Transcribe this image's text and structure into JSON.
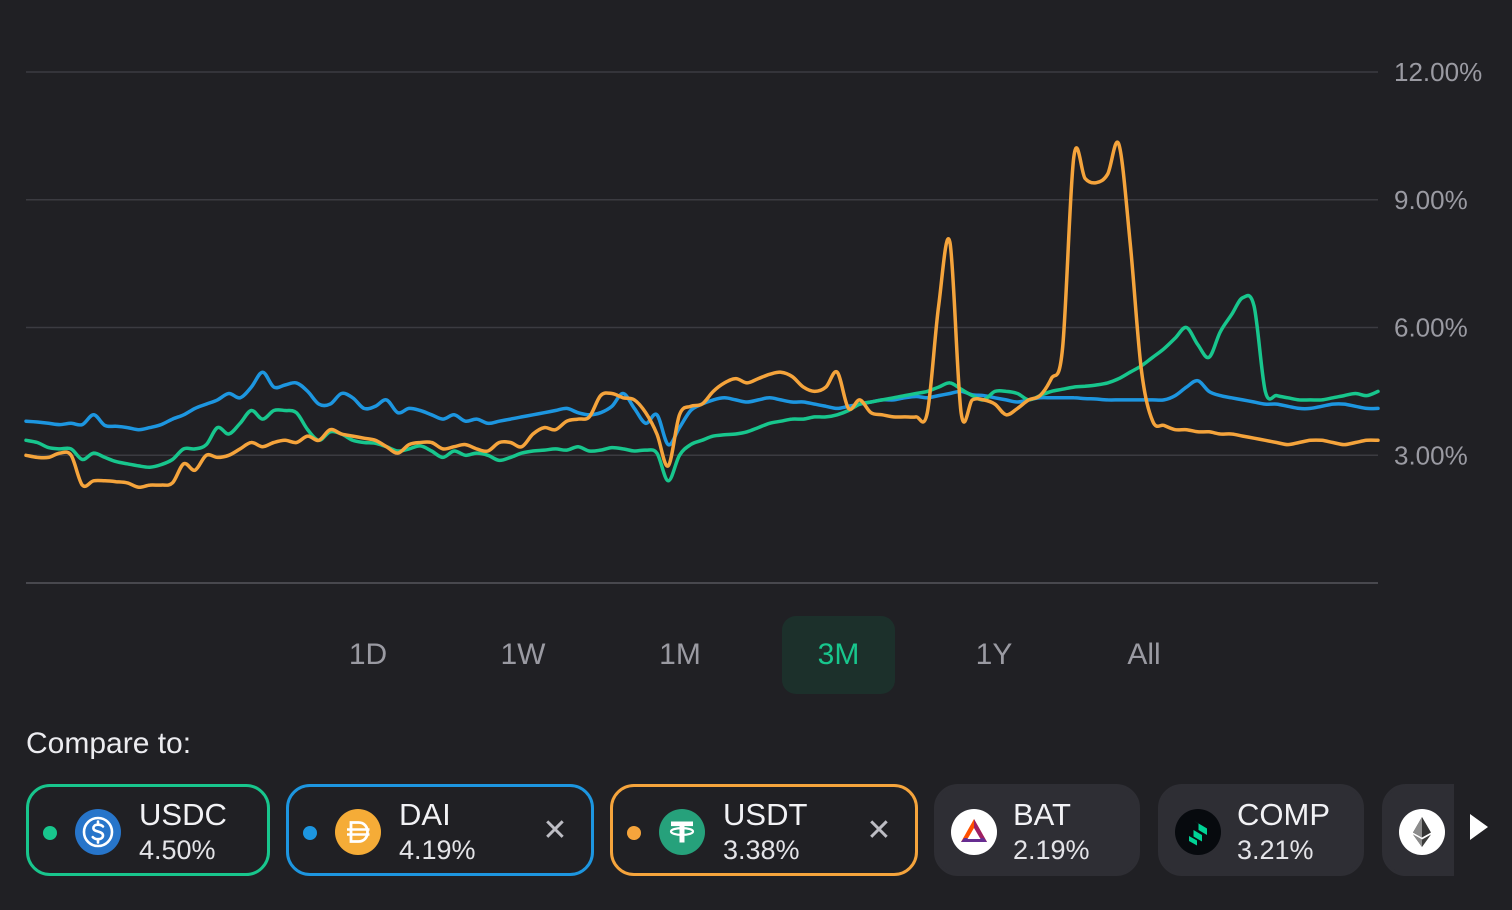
{
  "chart_data": {
    "type": "line",
    "ylim": [
      0,
      12
    ],
    "y_ticks": [
      3,
      6,
      9,
      12
    ],
    "y_tick_labels": [
      "3.00%",
      "6.00%",
      "9.00%",
      "12.00%"
    ],
    "grid": true,
    "x_points": 121,
    "series": [
      {
        "name": "USDC",
        "color": "#18c68d",
        "values": [
          3.35,
          3.3,
          3.18,
          3.15,
          3.15,
          2.9,
          3.05,
          2.95,
          2.85,
          2.8,
          2.75,
          2.72,
          2.78,
          2.9,
          3.15,
          3.15,
          3.25,
          3.65,
          3.5,
          3.75,
          4.05,
          3.85,
          4.05,
          4.05,
          4.0,
          3.6,
          3.35,
          3.55,
          3.5,
          3.35,
          3.3,
          3.28,
          3.2,
          3.1,
          3.15,
          3.22,
          3.1,
          2.95,
          3.1,
          3.0,
          3.05,
          3.0,
          2.88,
          2.95,
          3.05,
          3.1,
          3.12,
          3.15,
          3.12,
          3.2,
          3.1,
          3.12,
          3.18,
          3.15,
          3.1,
          3.12,
          3.05,
          2.4,
          3.0,
          3.25,
          3.35,
          3.45,
          3.48,
          3.5,
          3.55,
          3.65,
          3.75,
          3.8,
          3.85,
          3.85,
          3.9,
          3.9,
          3.95,
          4.05,
          4.2,
          4.25,
          4.3,
          4.35,
          4.4,
          4.45,
          4.5,
          4.6,
          4.7,
          4.55,
          4.4,
          4.3,
          4.5,
          4.5,
          4.45,
          4.3,
          4.4,
          4.5,
          4.55,
          4.6,
          4.62,
          4.65,
          4.7,
          4.8,
          4.95,
          5.1,
          5.3,
          5.5,
          5.75,
          6.0,
          5.6,
          5.3,
          5.9,
          6.3,
          6.7,
          6.5,
          4.5,
          4.4,
          4.35,
          4.3,
          4.3,
          4.3,
          4.35,
          4.4,
          4.45,
          4.4,
          4.5
        ]
      },
      {
        "name": "DAI",
        "color": "#1d96e0",
        "values": [
          3.8,
          3.78,
          3.75,
          3.72,
          3.75,
          3.72,
          3.95,
          3.7,
          3.68,
          3.65,
          3.6,
          3.65,
          3.72,
          3.85,
          3.95,
          4.1,
          4.2,
          4.3,
          4.45,
          4.35,
          4.6,
          4.95,
          4.6,
          4.65,
          4.7,
          4.5,
          4.2,
          4.2,
          4.45,
          4.35,
          4.1,
          4.15,
          4.3,
          4.0,
          4.1,
          4.05,
          3.95,
          3.85,
          3.95,
          3.8,
          3.85,
          3.75,
          3.8,
          3.85,
          3.9,
          3.95,
          4.0,
          4.05,
          4.1,
          4.0,
          3.95,
          4.0,
          4.15,
          4.45,
          4.1,
          3.75,
          3.95,
          3.25,
          3.65,
          4.05,
          4.2,
          4.3,
          4.35,
          4.3,
          4.25,
          4.3,
          4.35,
          4.3,
          4.25,
          4.25,
          4.2,
          4.15,
          4.1,
          4.15,
          4.2,
          4.25,
          4.3,
          4.3,
          4.35,
          4.38,
          4.35,
          4.4,
          4.45,
          4.5,
          4.42,
          4.4,
          4.35,
          4.3,
          4.25,
          4.3,
          4.35,
          4.35,
          4.35,
          4.35,
          4.33,
          4.32,
          4.3,
          4.3,
          4.3,
          4.3,
          4.3,
          4.3,
          4.4,
          4.6,
          4.75,
          4.5,
          4.4,
          4.35,
          4.3,
          4.25,
          4.2,
          4.2,
          4.15,
          4.1,
          4.1,
          4.15,
          4.2,
          4.2,
          4.15,
          4.1,
          4.1
        ]
      },
      {
        "name": "USDT",
        "color": "#f5a43c",
        "values": [
          3.0,
          2.95,
          2.95,
          3.05,
          3.0,
          2.3,
          2.4,
          2.4,
          2.38,
          2.35,
          2.25,
          2.3,
          2.3,
          2.35,
          2.8,
          2.65,
          3.0,
          2.95,
          3.0,
          3.15,
          3.3,
          3.2,
          3.3,
          3.35,
          3.3,
          3.45,
          3.35,
          3.6,
          3.5,
          3.45,
          3.4,
          3.35,
          3.2,
          3.05,
          3.25,
          3.3,
          3.3,
          3.15,
          3.2,
          3.25,
          3.15,
          3.1,
          3.3,
          3.3,
          3.2,
          3.5,
          3.65,
          3.6,
          3.8,
          3.85,
          3.9,
          4.4,
          4.45,
          4.35,
          4.3,
          4.0,
          3.5,
          2.75,
          3.95,
          4.15,
          4.2,
          4.5,
          4.7,
          4.8,
          4.7,
          4.8,
          4.9,
          4.95,
          4.85,
          4.6,
          4.5,
          4.6,
          4.95,
          4.1,
          4.3,
          4.0,
          3.95,
          3.9,
          3.9,
          3.9,
          4.0,
          6.5,
          8.0,
          4.0,
          4.3,
          4.3,
          4.2,
          3.95,
          4.1,
          4.3,
          4.4,
          4.8,
          5.5,
          10.0,
          9.5,
          9.4,
          9.6,
          10.3,
          8.0,
          5.0,
          3.8,
          3.7,
          3.6,
          3.6,
          3.55,
          3.55,
          3.5,
          3.5,
          3.45,
          3.4,
          3.35,
          3.3,
          3.25,
          3.3,
          3.35,
          3.35,
          3.3,
          3.25,
          3.3,
          3.35,
          3.35
        ]
      }
    ]
  },
  "ranges": {
    "items": [
      {
        "label": "1D"
      },
      {
        "label": "1W"
      },
      {
        "label": "1M"
      },
      {
        "label": "3M"
      },
      {
        "label": "1Y"
      },
      {
        "label": "All"
      }
    ],
    "active": "3M"
  },
  "compare": {
    "label": "Compare to:",
    "chips": [
      {
        "symbol": "USDC",
        "apy": "4.50%",
        "selected": true,
        "removable": false,
        "color": "#18c68d",
        "icon": "usdc-icon"
      },
      {
        "symbol": "DAI",
        "apy": "4.19%",
        "selected": true,
        "removable": true,
        "color": "#1d96e0",
        "icon": "dai-icon"
      },
      {
        "symbol": "USDT",
        "apy": "3.38%",
        "selected": true,
        "removable": true,
        "color": "#f5a43c",
        "icon": "usdt-icon"
      },
      {
        "symbol": "BAT",
        "apy": "2.19%",
        "selected": false,
        "removable": false,
        "color": "#2e2e34",
        "icon": "bat-icon"
      },
      {
        "symbol": "COMP",
        "apy": "3.21%",
        "selected": false,
        "removable": false,
        "color": "#2e2e34",
        "icon": "comp-icon"
      },
      {
        "symbol": "",
        "apy": "",
        "selected": false,
        "removable": false,
        "color": "#2e2e34",
        "icon": "eth-icon"
      }
    ],
    "remove_glyph": "✕"
  }
}
